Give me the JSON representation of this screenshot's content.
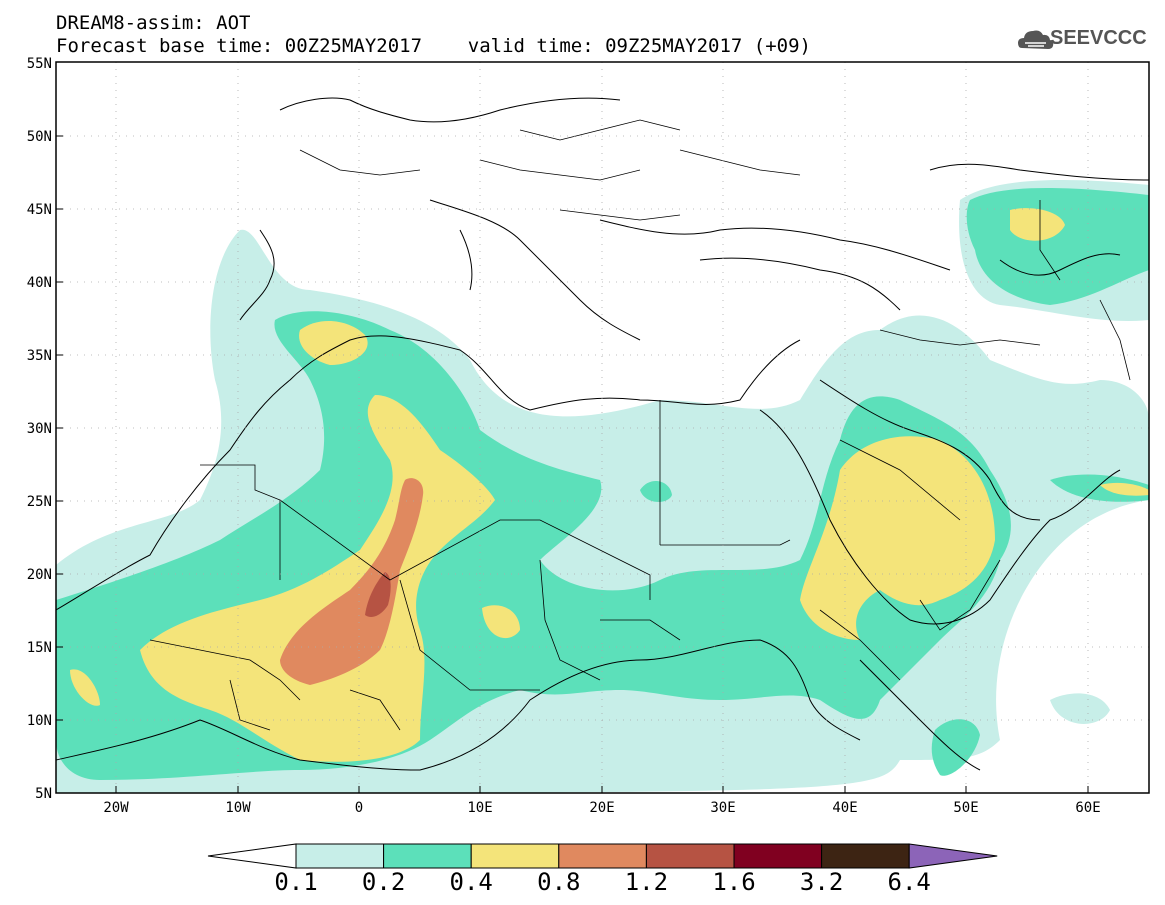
{
  "header": {
    "line1": "DREAM8-assim: AOT",
    "line2": "Forecast base time: 00Z25MAY2017    valid time: 09Z25MAY2017 (+09)"
  },
  "logo": {
    "text": "SEEVCCC",
    "icon": "cloud-icon"
  },
  "map": {
    "lon_range": [
      -25,
      65
    ],
    "lat_range": [
      5,
      55
    ],
    "lat_ticks": [
      "5N",
      "10N",
      "15N",
      "20N",
      "25N",
      "30N",
      "35N",
      "40N",
      "45N",
      "50N",
      "55N"
    ],
    "lon_ticks": [
      "20W",
      "10W",
      "0",
      "10E",
      "20E",
      "30E",
      "40E",
      "50E",
      "60E"
    ]
  },
  "colorbar": {
    "labels": [
      "0.1",
      "0.2",
      "0.4",
      "0.8",
      "1.2",
      "1.6",
      "3.2",
      "6.4"
    ],
    "colors": [
      "#ffffff",
      "#c7eee8",
      "#5ce0ba",
      "#f4e47a",
      "#e0895f",
      "#b65343",
      "#800020",
      "#3d2413",
      "#8c64b8"
    ]
  }
}
